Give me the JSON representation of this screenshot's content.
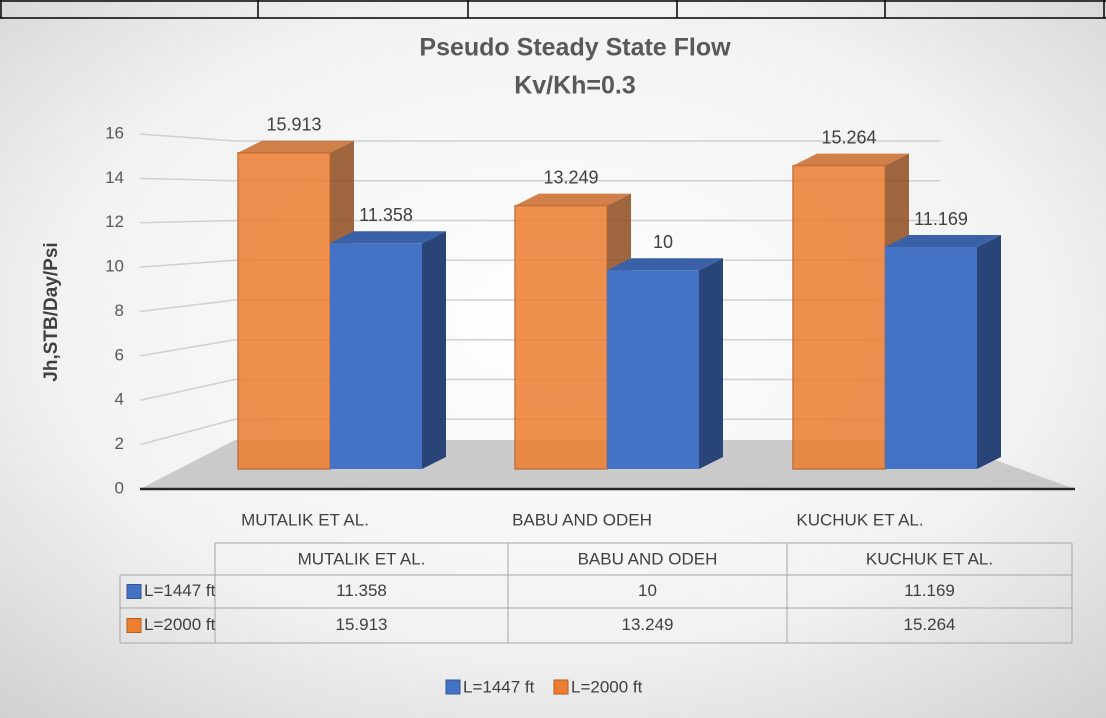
{
  "chart_data": {
    "type": "bar",
    "title": "Pseudo Steady State Flow",
    "subtitle": "Kv/Kh=0.3",
    "ylabel": "Jh,STB/Day/Psi",
    "categories": [
      "MUTALIK ET AL.",
      "BABU AND ODEH",
      "KUCHUK ET AL."
    ],
    "series": [
      {
        "name": "L=1447 ft",
        "color": "#4472c4",
        "values": [
          11.358,
          10,
          11.169
        ]
      },
      {
        "name": "L=2000 ft",
        "color": "#ed7d31",
        "values": [
          15.913,
          13.249,
          15.264
        ]
      }
    ],
    "ylim": [
      0,
      16
    ],
    "yticks": [
      0,
      2,
      4,
      6,
      8,
      10,
      12,
      14,
      16
    ],
    "grid": true,
    "data_table": true,
    "legend": "bottom"
  }
}
